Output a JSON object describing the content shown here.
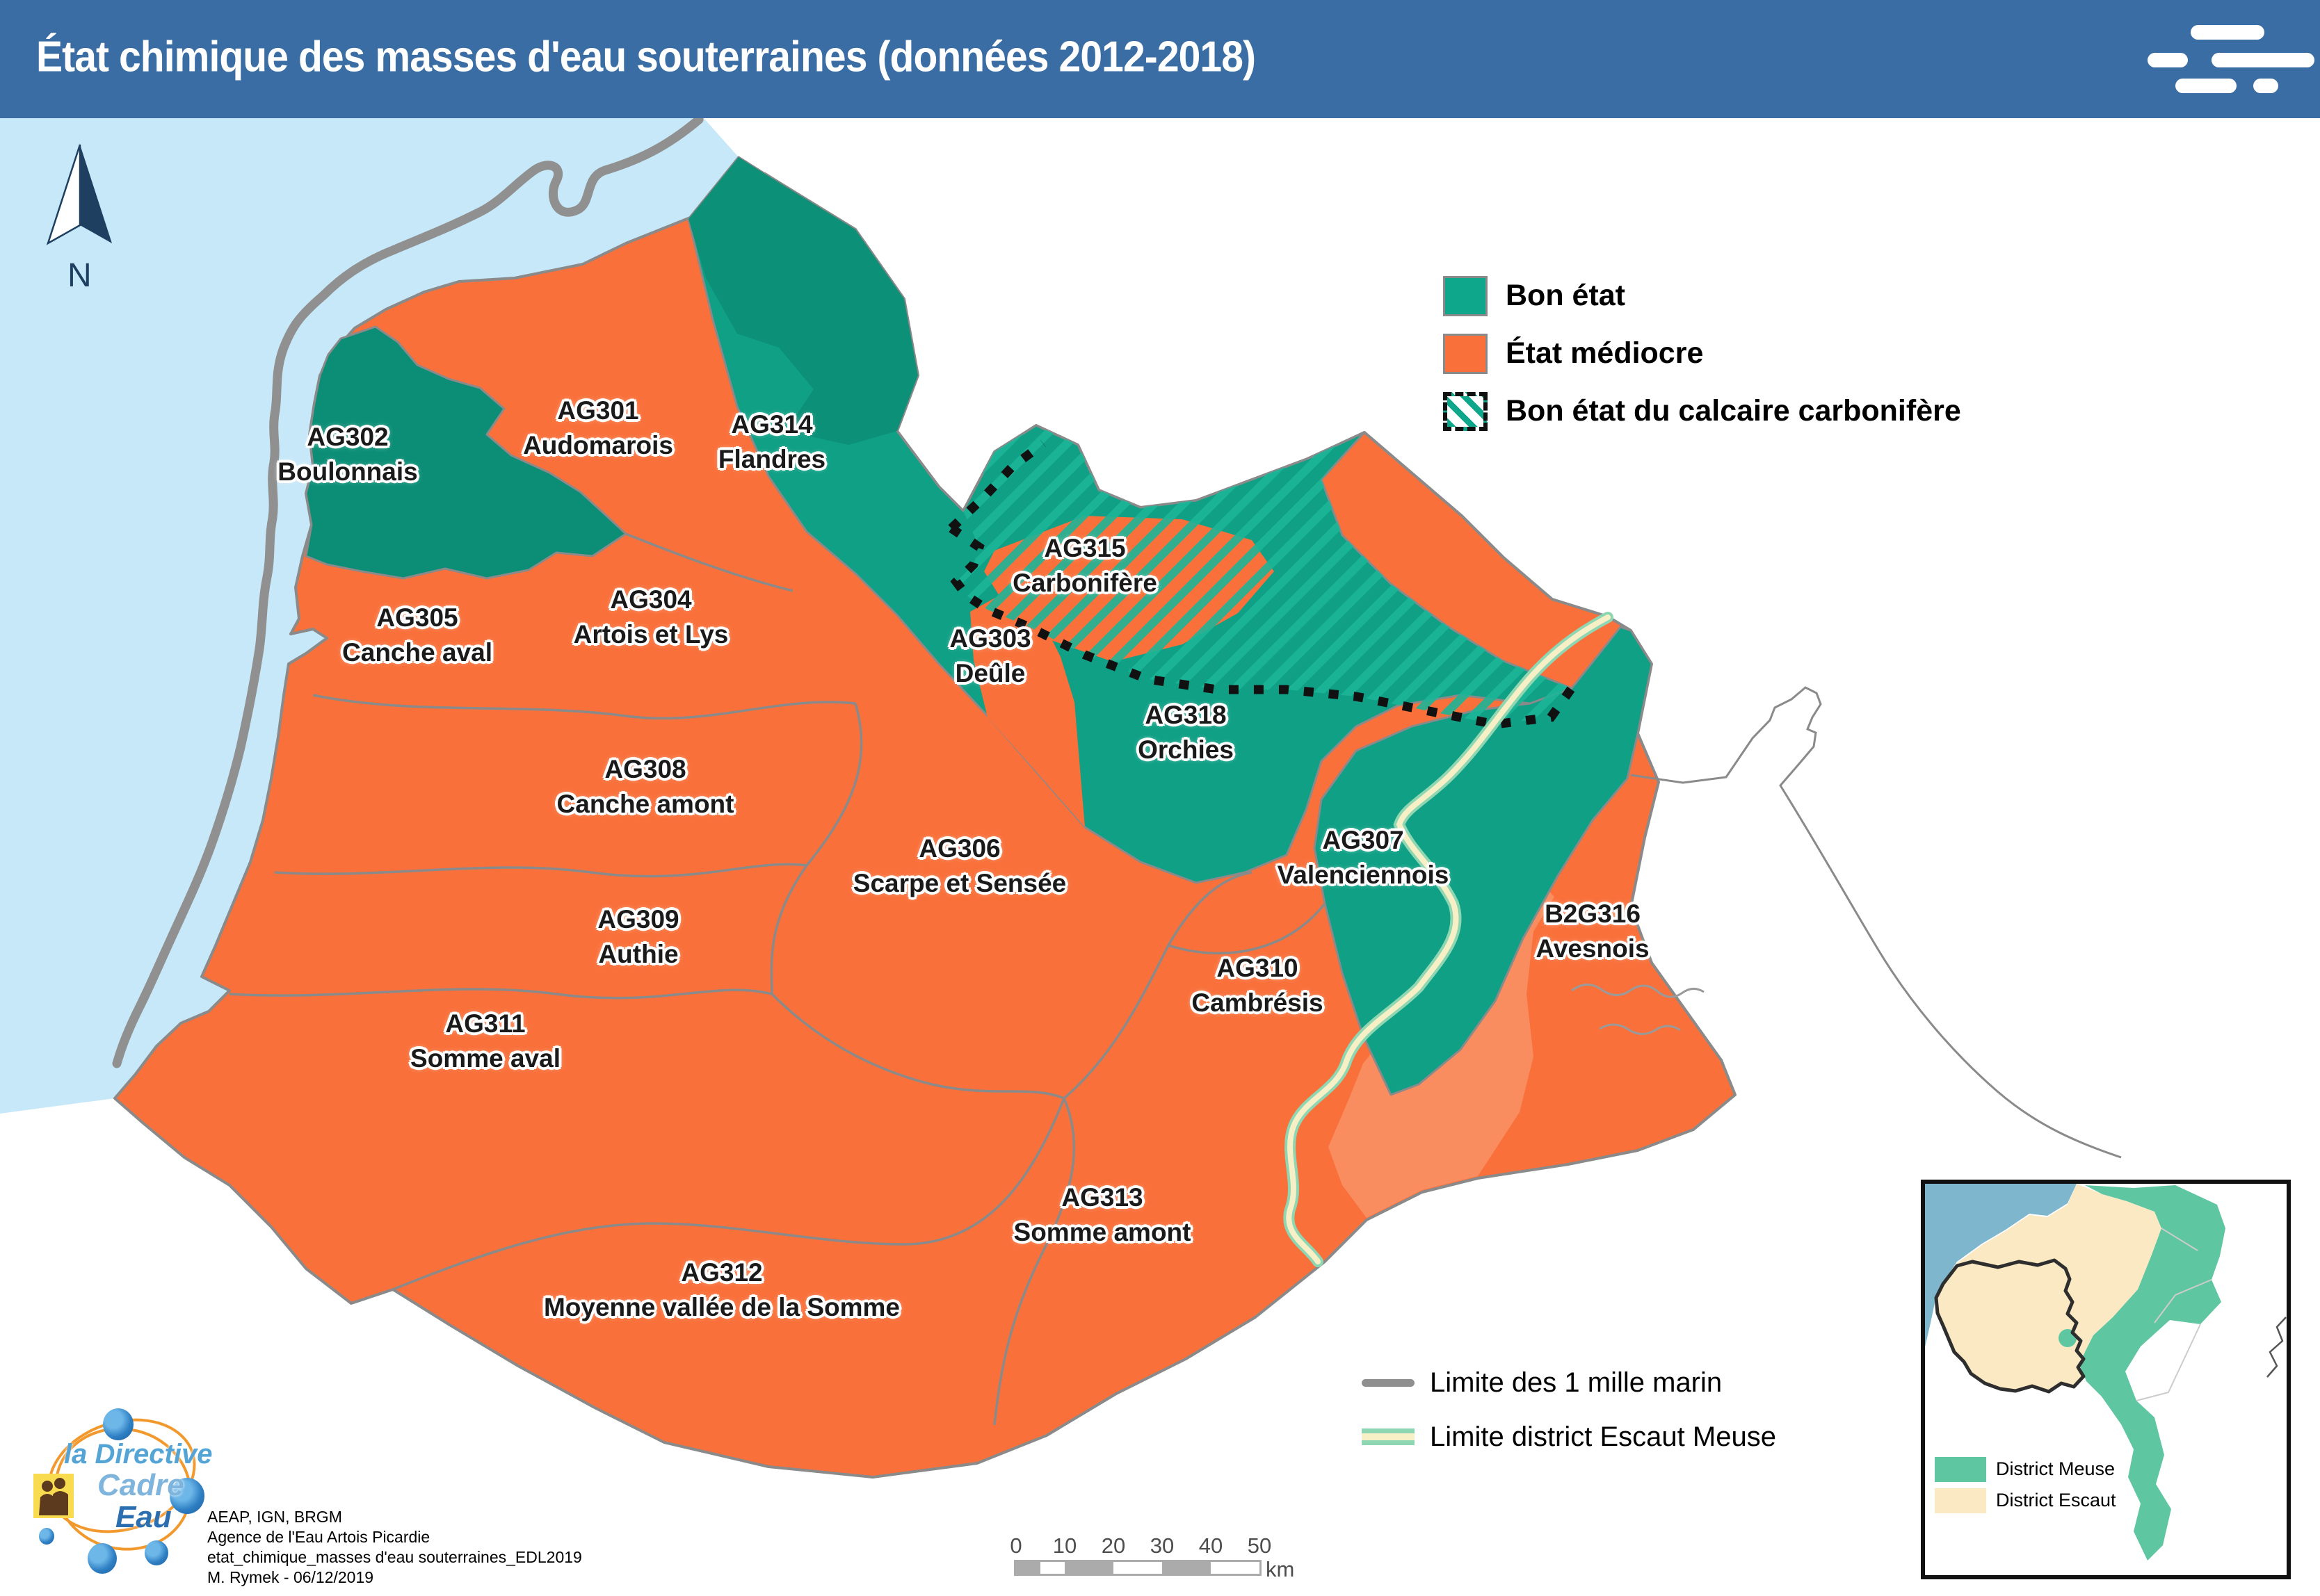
{
  "header": {
    "title": "État chimique des masses d'eau souterraines (données 2012-2018)"
  },
  "legend": {
    "items": [
      {
        "label": "Bon état",
        "color": "#0FA78C",
        "type": "solid"
      },
      {
        "label": "État médiocre",
        "color": "#F9703A",
        "type": "solid"
      },
      {
        "label": "Bon état du calcaire carbonifère",
        "color": "#0FA78C",
        "type": "hatched"
      }
    ],
    "lines": [
      {
        "label": "Limite des 1 mille marin",
        "color": "#8F8F8F"
      },
      {
        "label": "Limite district Escaut Meuse",
        "colors": [
          "#8FD6B2",
          "#F7EFC5"
        ]
      }
    ]
  },
  "map": {
    "north_label": "N",
    "sea_color": "#C7E8F8",
    "regions": [
      {
        "code": "AG302",
        "name": "Boulonnais",
        "status": "bon"
      },
      {
        "code": "AG301",
        "name": "Audomarois",
        "status": "mediocre"
      },
      {
        "code": "AG314",
        "name": "Flandres",
        "status": "bon"
      },
      {
        "code": "AG305",
        "name": "Canche aval",
        "status": "mediocre"
      },
      {
        "code": "AG304",
        "name": "Artois et Lys",
        "status": "mediocre"
      },
      {
        "code": "AG303",
        "name": "Deûle",
        "status": "mediocre"
      },
      {
        "code": "AG315",
        "name": "Carbonifère",
        "status": "bon calcaire carbonifère"
      },
      {
        "code": "AG318",
        "name": "Orchies",
        "status": "bon"
      },
      {
        "code": "AG308",
        "name": "Canche amont",
        "status": "mediocre"
      },
      {
        "code": "AG306",
        "name": "Scarpe et Sensée",
        "status": "mediocre"
      },
      {
        "code": "AG309",
        "name": "Authie",
        "status": "mediocre"
      },
      {
        "code": "AG307",
        "name": "Valenciennois",
        "status": "bon"
      },
      {
        "code": "B2G316",
        "name": "Avesnois",
        "status": "mediocre"
      },
      {
        "code": "AG310",
        "name": "Cambrésis",
        "status": "mediocre"
      },
      {
        "code": "AG311",
        "name": "Somme aval",
        "status": "mediocre"
      },
      {
        "code": "AG313",
        "name": "Somme amont",
        "status": "mediocre"
      },
      {
        "code": "AG312",
        "name": "Moyenne vallée de la Somme",
        "status": "mediocre"
      }
    ]
  },
  "colors": {
    "bon": "#0FA085",
    "bon_dark": "#0C8E76",
    "mediocre": "#F9703A",
    "mediocre_light": "#FA8E61",
    "header_blue": "#3A6DA3",
    "sea": "#C7E8F8",
    "inset_sea": "#7EB6CD",
    "inset_meuse": "#5FC6A2",
    "inset_escaut": "#FBE9C3"
  },
  "scale_bar": {
    "ticks": [
      "0",
      "10",
      "20",
      "30",
      "40",
      "50"
    ],
    "unit": "km"
  },
  "inset": {
    "legend": [
      {
        "label": "District Meuse",
        "color": "#5FC6A2"
      },
      {
        "label": "District Escaut",
        "color": "#FBE9C3"
      }
    ]
  },
  "credits": {
    "lines": [
      "AEAP, IGN, BRGM",
      "Agence de l'Eau Artois Picardie",
      "etat_chimique_masses d'eau souterraines_EDL2019",
      "M. Rymek - 06/12/2019"
    ]
  },
  "logo": {
    "lines": [
      "la Directive",
      "Cadre",
      "Eau"
    ]
  }
}
